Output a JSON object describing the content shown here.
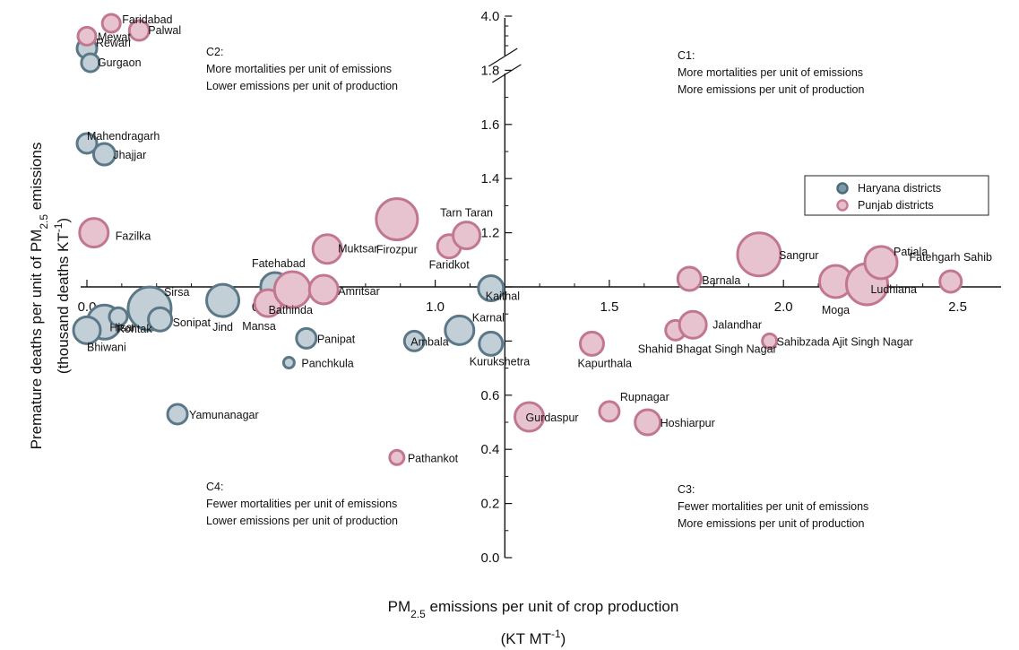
{
  "chart_data": {
    "type": "scatter",
    "ylabel": "Premature deaths per unit of PM",
    "ylabel_sub": "2.5",
    "ylabel_suffix": " emissions",
    "ylabel2": "(thousand deaths KT",
    "ylabel2_sup": "-1",
    "ylabel2_suffix": ")",
    "xlabel": "PM",
    "xlabel_sub": "2.5",
    "xlabel_suffix": " emissions per unit of crop production",
    "xlabel2": "(KT MT",
    "xlabel2_sup": "-1",
    "xlabel2_suffix": ")",
    "xlim": [
      0,
      2.6
    ],
    "ylim": [
      0,
      1.8
    ],
    "y_break": {
      "upper_label": "4.0",
      "upper_value": 4.0
    },
    "x_ticks": [
      0.0,
      0.5,
      1.0,
      1.5,
      2.0,
      2.5
    ],
    "x_tick_labels": [
      "0.0",
      "0.5",
      "1.0",
      "1.5",
      "2.0",
      "2.5"
    ],
    "y_ticks": [
      0.0,
      0.2,
      0.4,
      0.6,
      0.8,
      1.0,
      1.2,
      1.4,
      1.6,
      1.8
    ],
    "y_tick_labels": [
      "0.0",
      "0.2",
      "0.4",
      "0.6",
      "0.8",
      "1.0",
      "1.2",
      "1.4",
      "1.6",
      "1.8"
    ],
    "reference_lines": {
      "x": 1.2,
      "y": 1.0
    },
    "legend": {
      "position": "upper-right",
      "entries": [
        {
          "label": "Haryana districts",
          "color": "#7b99a6",
          "stroke": "#4b6b7a"
        },
        {
          "label": "Punjab districts",
          "color": "#e6bfcc",
          "stroke": "#c77d95"
        }
      ]
    },
    "quadrants": [
      {
        "id": "C1",
        "title": "C1:",
        "line1": "More mortalities per unit of emissions",
        "line2": "More emissions per unit of production"
      },
      {
        "id": "C2",
        "title": "C2:",
        "line1": "More mortalities per unit of emissions",
        "line2": "Lower emissions per unit of production"
      },
      {
        "id": "C3",
        "title": "C3:",
        "line1": "Fewer mortalities per unit of emissions",
        "line2": "More emissions per unit of production"
      },
      {
        "id": "C4",
        "title": "C4:",
        "line1": "Fewer mortalities per unit of emissions",
        "line2": "Lower emissions per unit of production"
      }
    ],
    "series": [
      {
        "name": "Haryana districts",
        "color": "#c3cfd6",
        "stroke": "#5a7888",
        "points": [
          {
            "label": "Rewari",
            "x": 0.0,
            "y": 3.55,
            "size": 0.35
          },
          {
            "label": "Gurgaon",
            "x": 0.01,
            "y": 3.35,
            "size": 0.3
          },
          {
            "label": "Mahendragarh",
            "x": 0.0,
            "y": 1.53,
            "size": 0.35
          },
          {
            "label": "Jhajjar",
            "x": 0.05,
            "y": 1.49,
            "size": 0.4
          },
          {
            "label": "Sirsa",
            "x": 0.18,
            "y": 0.92,
            "size": 1.0
          },
          {
            "label": "Hisar",
            "x": 0.05,
            "y": 0.87,
            "size": 0.75
          },
          {
            "label": "Bhiwani",
            "x": 0.0,
            "y": 0.84,
            "size": 0.55
          },
          {
            "label": "Rohtak",
            "x": 0.09,
            "y": 0.89,
            "size": 0.3
          },
          {
            "label": "Sonipat",
            "x": 0.21,
            "y": 0.88,
            "size": 0.45
          },
          {
            "label": "Jind",
            "x": 0.39,
            "y": 0.95,
            "size": 0.7
          },
          {
            "label": "Fatehabad",
            "x": 0.54,
            "y": 1.0,
            "size": 0.6
          },
          {
            "label": "Panipat",
            "x": 0.63,
            "y": 0.81,
            "size": 0.35
          },
          {
            "label": "Panchkula",
            "x": 0.58,
            "y": 0.72,
            "size": 0.1
          },
          {
            "label": "Yamunanagar",
            "x": 0.26,
            "y": 0.53,
            "size": 0.35
          },
          {
            "label": "Ambala",
            "x": 0.94,
            "y": 0.8,
            "size": 0.35
          },
          {
            "label": "Karnal",
            "x": 1.07,
            "y": 0.84,
            "size": 0.6
          },
          {
            "label": "Kaithal",
            "x": 1.16,
            "y": 0.995,
            "size": 0.5
          },
          {
            "label": "Kurukshetra",
            "x": 1.16,
            "y": 0.79,
            "size": 0.45
          }
        ]
      },
      {
        "name": "Punjab districts",
        "color": "#e6c3cf",
        "stroke": "#c27791",
        "points": [
          {
            "label": "Faridabad",
            "x": 0.07,
            "y": 3.9,
            "size": 0.3
          },
          {
            "label": "Palwal",
            "x": 0.15,
            "y": 3.8,
            "size": 0.35
          },
          {
            "label": "Mewat",
            "x": 0.0,
            "y": 3.72,
            "size": 0.3
          },
          {
            "label": "Fazilka",
            "x": 0.02,
            "y": 1.2,
            "size": 0.6
          },
          {
            "label": "Muktsar",
            "x": 0.69,
            "y": 1.14,
            "size": 0.6
          },
          {
            "label": "Firozpur",
            "x": 0.89,
            "y": 1.25,
            "size": 0.95
          },
          {
            "label": "Faridkot",
            "x": 1.04,
            "y": 1.15,
            "size": 0.45
          },
          {
            "label": "Tarn Taran",
            "x": 1.09,
            "y": 1.19,
            "size": 0.55
          },
          {
            "label": "Mansa",
            "x": 0.52,
            "y": 0.94,
            "size": 0.55
          },
          {
            "label": "Bathinda",
            "x": 0.59,
            "y": 0.99,
            "size": 0.8
          },
          {
            "label": "Amritsar",
            "x": 0.68,
            "y": 0.99,
            "size": 0.6
          },
          {
            "label": "Pathankot",
            "x": 0.89,
            "y": 0.37,
            "size": 0.2
          },
          {
            "label": "Gurdaspur",
            "x": 1.27,
            "y": 0.52,
            "size": 0.6
          },
          {
            "label": "Rupnagar",
            "x": 1.5,
            "y": 0.54,
            "size": 0.35
          },
          {
            "label": "Hoshiarpur",
            "x": 1.61,
            "y": 0.5,
            "size": 0.5
          },
          {
            "label": "Kapurthala",
            "x": 1.45,
            "y": 0.79,
            "size": 0.45
          },
          {
            "label": "Barnala",
            "x": 1.73,
            "y": 1.03,
            "size": 0.45
          },
          {
            "label": "Shahid Bhagat Singh Nagar",
            "x": 1.69,
            "y": 0.84,
            "size": 0.35
          },
          {
            "label": "Jalandhar",
            "x": 1.74,
            "y": 0.86,
            "size": 0.55
          },
          {
            "label": "Sahibzada Ajit Singh Nagar",
            "x": 1.96,
            "y": 0.8,
            "size": 0.2
          },
          {
            "label": "Sangrur",
            "x": 1.93,
            "y": 1.12,
            "size": 1.0
          },
          {
            "label": "Moga",
            "x": 2.15,
            "y": 1.02,
            "size": 0.7
          },
          {
            "label": "Ludhiana",
            "x": 2.24,
            "y": 1.01,
            "size": 0.95
          },
          {
            "label": "Patiala",
            "x": 2.28,
            "y": 1.09,
            "size": 0.7
          },
          {
            "label": "Fatehgarh Sahib",
            "x": 2.48,
            "y": 1.02,
            "size": 0.4
          }
        ]
      }
    ]
  }
}
